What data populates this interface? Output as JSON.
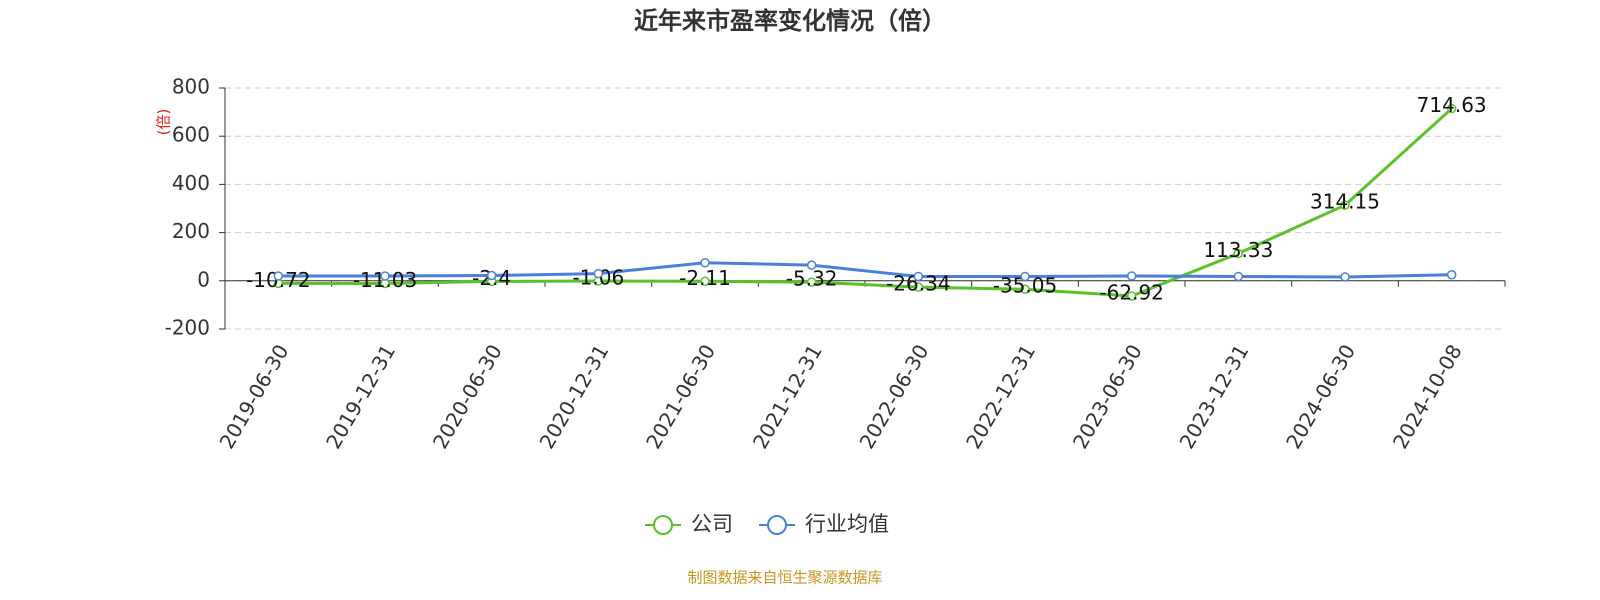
{
  "chart_data": {
    "type": "line",
    "title": "近年来市盈率变化情况（倍）",
    "y_label": "(倍)",
    "source": "制图数据来自恒生聚源数据库",
    "categories": [
      "2019-06-30",
      "2019-12-31",
      "2020-06-30",
      "2020-12-31",
      "2021-06-30",
      "2021-12-31",
      "2022-06-30",
      "2022-12-31",
      "2023-06-30",
      "2023-12-31",
      "2024-06-30",
      "2024-10-08"
    ],
    "series": [
      {
        "name": "公司",
        "color": "#5ac229",
        "labels": true,
        "values": [
          -10.72,
          -11.03,
          -2.4,
          -1.06,
          -2.11,
          -5.32,
          -26.34,
          -35.05,
          -62.92,
          113.33,
          314.15,
          714.63
        ]
      },
      {
        "name": "行业均值",
        "color": "#4a7fdc",
        "labels": false,
        "values": [
          20,
          20,
          22,
          30,
          75,
          65,
          18,
          18,
          20,
          18,
          16,
          25
        ]
      }
    ],
    "ylim": [
      -200,
      800
    ],
    "yticks": [
      -200,
      0,
      200,
      400,
      600,
      800
    ],
    "grid": true
  }
}
